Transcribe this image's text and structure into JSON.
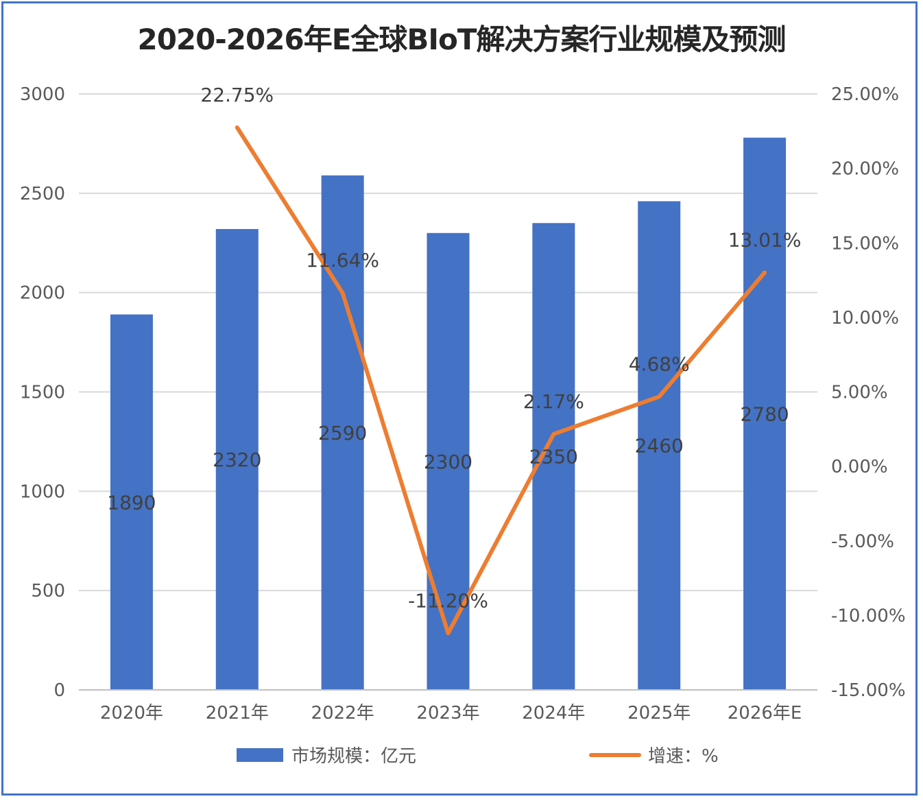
{
  "chart_data": {
    "type": "bar",
    "title": "2020-2026年E全球BIoT解决方案行业规模及预测",
    "categories": [
      "2020年",
      "2021年",
      "2022年",
      "2023年",
      "2024年",
      "2025年",
      "2026年E"
    ],
    "series": [
      {
        "name": "市场规模：亿元",
        "type": "bar",
        "axis": "left",
        "color": "#4472C4",
        "values": [
          1890,
          2320,
          2590,
          2300,
          2350,
          2460,
          2780
        ],
        "labels": [
          "1890",
          "2320",
          "2590",
          "2300",
          "2350",
          "2460",
          "2780"
        ]
      },
      {
        "name": "增速：%",
        "type": "line",
        "axis": "right",
        "color": "#ED7D31",
        "values": [
          null,
          22.75,
          11.64,
          -11.2,
          2.17,
          4.68,
          13.01
        ],
        "labels": [
          "",
          "22.75%",
          "11.64%",
          "-11.20%",
          "2.17%",
          "4.68%",
          "13.01%"
        ]
      }
    ],
    "y_left": {
      "min": 0,
      "max": 3000,
      "ticks": [
        0,
        500,
        1000,
        1500,
        2000,
        2500,
        3000
      ],
      "tick_labels": [
        "0",
        "500",
        "1000",
        "1500",
        "2000",
        "2500",
        "3000"
      ]
    },
    "y_right": {
      "min": -15,
      "max": 25,
      "ticks": [
        -15,
        -10,
        -5,
        0,
        5,
        10,
        15,
        20,
        25
      ],
      "tick_labels": [
        "-15.00%",
        "-10.00%",
        "-5.00%",
        "0.00%",
        "5.00%",
        "10.00%",
        "15.00%",
        "20.00%",
        "25.00%"
      ]
    },
    "grid": true,
    "legend": "bottom"
  }
}
